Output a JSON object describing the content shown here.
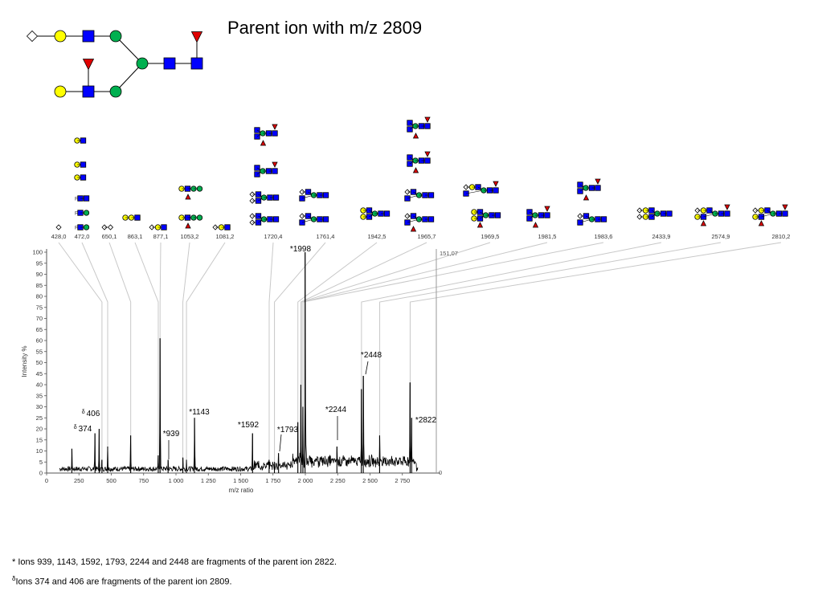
{
  "slide": {
    "title": "Parent ion with m/z 2809"
  },
  "footnotes": {
    "line1_mark": "*",
    "line1_text": "Ions 939, 1143, 1592, 1793, 2244 and 2448 are fragments of the parent ion 2822.",
    "line2_mark": "δ",
    "line2_text": "Ions 374 and 406 are fragments of the parent ion 2809."
  },
  "colors": {
    "galactose": "#ffff00",
    "glcnac": "#0000ff",
    "mannose": "#00b050",
    "fucose": "#e00000",
    "reducing_end": "#ffffff",
    "spectrum": "#000000",
    "leader": "#c8c8c8"
  },
  "chart_data": {
    "type": "line",
    "title": "",
    "xlabel": "m/z ratio",
    "ylabel": "Intensity %",
    "xlim": [
      0,
      3000
    ],
    "ylim": [
      0,
      100
    ],
    "x_ticks": [
      {
        "value": 0,
        "label": "0"
      },
      {
        "value": 250,
        "label": "250"
      },
      {
        "value": 500,
        "label": "500"
      },
      {
        "value": 750,
        "label": "750"
      },
      {
        "value": 1000,
        "label": "1 000"
      },
      {
        "value": 1250,
        "label": "1 250"
      },
      {
        "value": 1500,
        "label": "1 500"
      },
      {
        "value": 1750,
        "label": "1 750"
      },
      {
        "value": 2000,
        "label": "2 000"
      },
      {
        "value": 2250,
        "label": "2 250"
      },
      {
        "value": 2500,
        "label": "2 500"
      },
      {
        "value": 2750,
        "label": "2 750"
      }
    ],
    "y_ticks": [
      0,
      5,
      10,
      15,
      20,
      25,
      30,
      35,
      40,
      45,
      50,
      55,
      60,
      65,
      70,
      75,
      80,
      85,
      90,
      95,
      100
    ],
    "right_axis_top_label": "151,07",
    "right_axis_bottom_label": "0",
    "grid": false,
    "peaks": [
      {
        "x": 195,
        "y": 11
      },
      {
        "x": 374,
        "y": 18
      },
      {
        "x": 406,
        "y": 20
      },
      {
        "x": 428,
        "y": 6
      },
      {
        "x": 472,
        "y": 12
      },
      {
        "x": 650,
        "y": 17
      },
      {
        "x": 863,
        "y": 8
      },
      {
        "x": 877,
        "y": 61
      },
      {
        "x": 939,
        "y": 6
      },
      {
        "x": 1053,
        "y": 7
      },
      {
        "x": 1081,
        "y": 6
      },
      {
        "x": 1143,
        "y": 25
      },
      {
        "x": 1592,
        "y": 18
      },
      {
        "x": 1720,
        "y": 6
      },
      {
        "x": 1761,
        "y": 5
      },
      {
        "x": 1793,
        "y": 9
      },
      {
        "x": 1942,
        "y": 23
      },
      {
        "x": 1965,
        "y": 40
      },
      {
        "x": 1981,
        "y": 30
      },
      {
        "x": 1998,
        "y": 100
      },
      {
        "x": 2244,
        "y": 12
      },
      {
        "x": 2433,
        "y": 38
      },
      {
        "x": 2448,
        "y": 44
      },
      {
        "x": 2574,
        "y": 17
      },
      {
        "x": 2810,
        "y": 41
      },
      {
        "x": 2822,
        "y": 25
      }
    ],
    "annotations": [
      {
        "text": "*1998",
        "x": 1998,
        "y": 100
      },
      {
        "text": "*2448",
        "x": 2448,
        "y": 44
      },
      {
        "text": "*2244",
        "x": 2244,
        "y": 15
      },
      {
        "text": "*2822",
        "x": 2822,
        "y": 25
      },
      {
        "text": "*1143",
        "x": 1143,
        "y": 25
      },
      {
        "text": "*1592",
        "x": 1592,
        "y": 20
      },
      {
        "text": "*1793",
        "x": 1793,
        "y": 15
      },
      {
        "text": "*939",
        "x": 939,
        "y": 6
      },
      {
        "mark": "δ",
        "text": "406",
        "x": 406,
        "y": 25
      },
      {
        "mark": "δ",
        "text": "374",
        "x": 374,
        "y": 19
      }
    ],
    "assigned_peaks": [
      "428,0",
      "472,0",
      "650,1",
      "863,1",
      "877,1",
      "1053,2",
      "1081,2",
      "1720,4",
      "1761,4",
      "1942,5",
      "1965,7",
      "1969,5",
      "1981,5",
      "1983,6",
      "2433,9",
      "2574,9",
      "2810,2"
    ]
  }
}
